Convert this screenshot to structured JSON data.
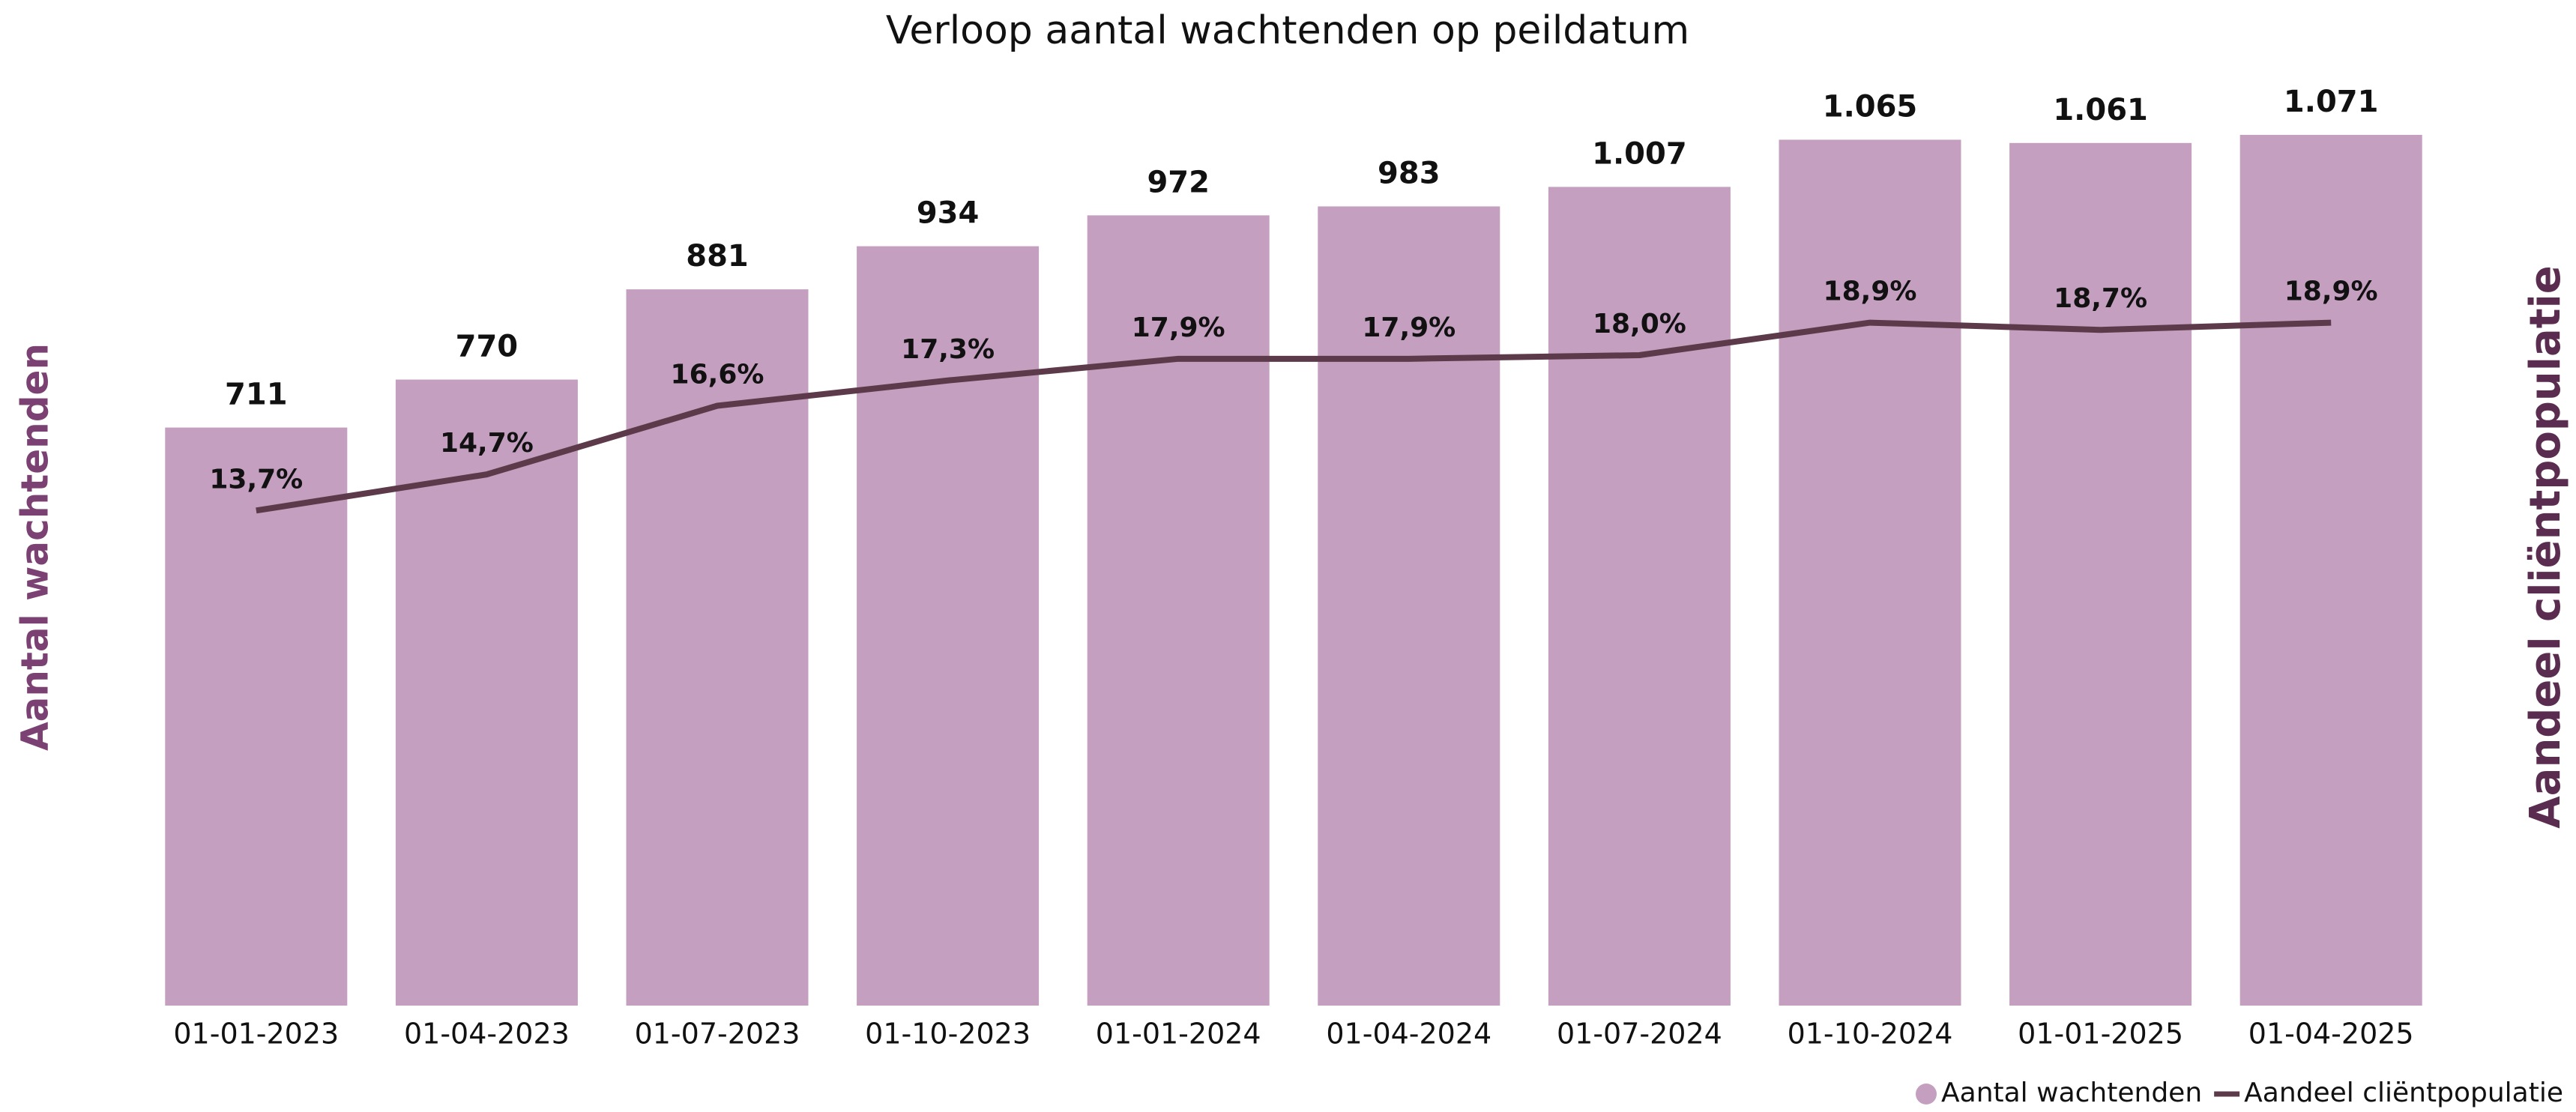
{
  "chart_data": {
    "type": "bar_line",
    "title": "Verloop aantal wachtenden op peildatum",
    "y_label": "Aantal wachtenden",
    "y2_label": "Aandeel cliëntpopulatie",
    "categories": [
      "01-01-2023",
      "01-04-2023",
      "01-07-2023",
      "01-10-2023",
      "01-01-2024",
      "01-04-2024",
      "01-07-2024",
      "01-10-2024",
      "01-01-2025",
      "01-04-2025"
    ],
    "series": [
      {
        "name": "Aantal wachtenden",
        "type": "bar",
        "color": "#c49fbf",
        "values": [
          711,
          770,
          881,
          934,
          972,
          983,
          1007,
          1065,
          1061,
          1071
        ],
        "value_labels": [
          "711",
          "770",
          "881",
          "934",
          "972",
          "983",
          "1.007",
          "1.065",
          "1.061",
          "1.071"
        ]
      },
      {
        "name": "Aandeel cliëntpopulatie",
        "type": "line",
        "axis": "y2",
        "color": "#5c3a4a",
        "values": [
          13.7,
          14.7,
          16.6,
          17.3,
          17.9,
          17.9,
          18.0,
          18.9,
          18.7,
          18.9
        ],
        "value_labels": [
          "13,7%",
          "14,7%",
          "16,6%",
          "17,3%",
          "17,9%",
          "17,9%",
          "18,0%",
          "18,9%",
          "18,7%",
          "18,9%"
        ]
      }
    ],
    "ylim": [
      0,
      1200
    ],
    "y2lim": [
      0,
      27
    ],
    "y_label_color": "#7b4172",
    "y2_label_color": "#5a2d50",
    "legend": "bottom-right"
  }
}
